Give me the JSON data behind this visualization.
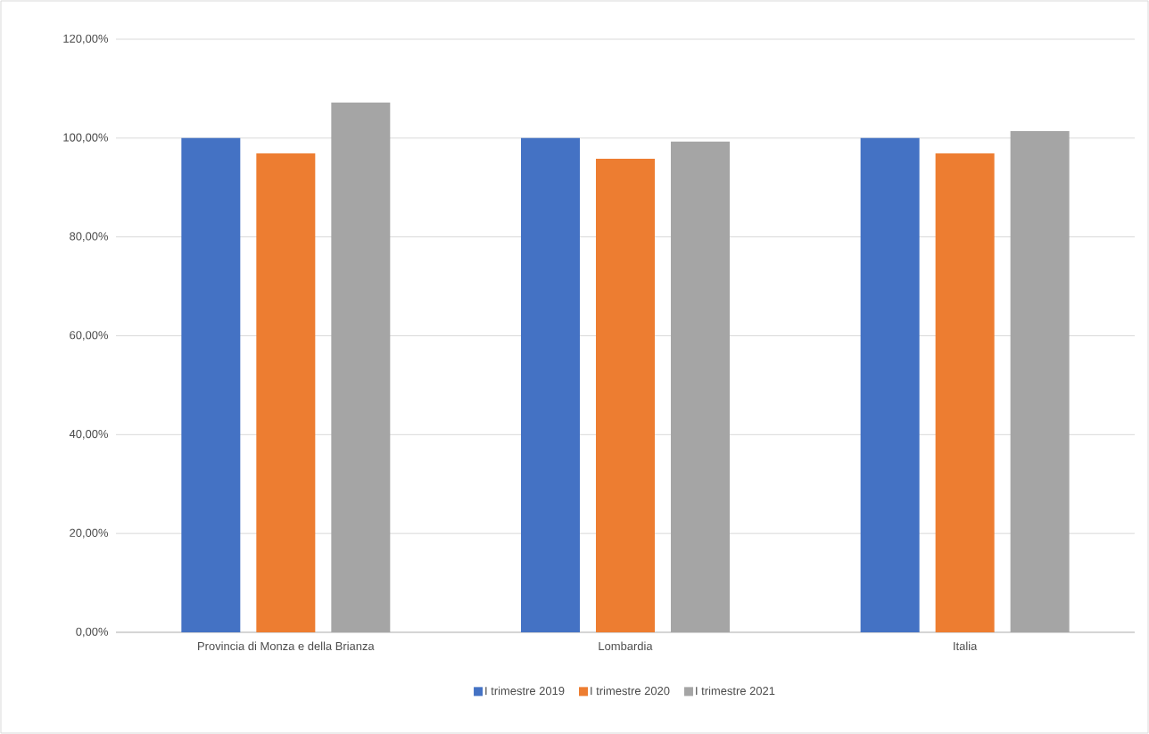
{
  "chart_data": {
    "type": "bar",
    "categories": [
      "Provincia di Monza e della Brianza",
      "Lombardia",
      "Italia"
    ],
    "series": [
      {
        "name": "I trimestre 2019",
        "color": "#4472c4",
        "values": [
          100,
          100,
          100
        ]
      },
      {
        "name": "I trimestre 2020",
        "color": "#ed7d31",
        "values": [
          96.9,
          95.8,
          96.9
        ]
      },
      {
        "name": "I trimestre 2021",
        "color": "#a5a5a5",
        "values": [
          107.2,
          99.3,
          101.4
        ]
      }
    ],
    "ylim": [
      0,
      120
    ],
    "yticks": [
      {
        "value": 0,
        "label": "0,00%"
      },
      {
        "value": 20,
        "label": "20,00%"
      },
      {
        "value": 40,
        "label": "40,00%"
      },
      {
        "value": 60,
        "label": "60,00%"
      },
      {
        "value": 80,
        "label": "80,00%"
      },
      {
        "value": 100,
        "label": "100,00%"
      },
      {
        "value": 120,
        "label": "120,00%"
      }
    ],
    "grid": "y",
    "legend": "bottom"
  }
}
